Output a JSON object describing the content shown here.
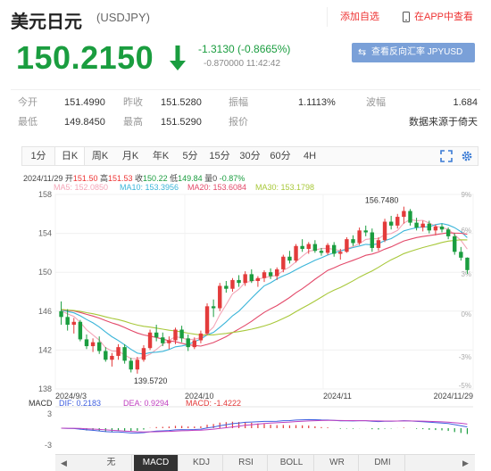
{
  "header": {
    "title": "美元日元",
    "code": "(USDJPY)",
    "add_watch": "添加自选",
    "app_link": "在APP中查看"
  },
  "quote": {
    "price": "150.2150",
    "change": "-1.3130 (-0.8665%)",
    "sub_change": "-0.870000",
    "time": "11:42:42",
    "reverse_button": "查看反向汇率 JPYUSD"
  },
  "stats": {
    "open_label": "今开",
    "open": "151.4990",
    "prev_label": "昨收",
    "prev": "151.5280",
    "amp_label": "振幅",
    "amp": "1.1113%",
    "wave_label": "波幅",
    "wave": "1.684",
    "low_label": "最低",
    "low": "149.8450",
    "high_label": "最高",
    "high": "151.5290",
    "quote_label": "报价",
    "source": "数据来源于倚天"
  },
  "tabs": [
    "1分",
    "日K",
    "周K",
    "月K",
    "年K",
    "5分",
    "15分",
    "30分",
    "60分",
    "4H"
  ],
  "active_tab": "日K",
  "icons": [
    "fullscreen-icon",
    "settings-icon"
  ],
  "chart_info": {
    "date": "2024/11/29",
    "open_label": "开",
    "open": "151.50",
    "high_label": "高",
    "high": "151.53",
    "close_label": "收",
    "close": "150.22",
    "low_label": "低",
    "low": "149.84",
    "change_label": "量",
    "change": "0",
    "pct": "-0.87%",
    "ma5": "MA5: 152.0850",
    "ma10": "MA10: 153.3956",
    "ma20": "MA20: 153.6084",
    "ma30": "MA30: 153.1798"
  },
  "colors": {
    "up": "#e33b3b",
    "down": "#1a9d3f",
    "ma5": "#f4a6b8",
    "ma10": "#3bb5d9",
    "ma20": "#e34a6a",
    "ma30": "#a8c83a",
    "macd_dif": "#4060e0",
    "macd_dea": "#c040c0",
    "accent_button": "#7aa0d8"
  },
  "macd_info": {
    "title": "MACD",
    "dif": "DIF: 0.2183",
    "dea": "DEA: 0.9294",
    "macd": "MACD: -1.4222",
    "y_top": "3",
    "y_bottom": "-3"
  },
  "bottom_tabs": [
    "无",
    "MACD",
    "KDJ",
    "RSI",
    "BOLL",
    "WR",
    "DMI"
  ],
  "active_bottom_tab": "MACD",
  "chart_data": {
    "type": "candlestick",
    "title": "",
    "x_labels": [
      "2024/9/3",
      "2024/10",
      "2024/11",
      "2024/11/29"
    ],
    "y_ticks": [
      "158",
      "154",
      "150",
      "146",
      "142",
      "138"
    ],
    "y_range": [
      138,
      158
    ],
    "pct_ticks": [
      "9%",
      "6%",
      "3%",
      "0%",
      "-3%",
      "-5%"
    ],
    "annotations": {
      "max": "156.7480",
      "min": "139.5720"
    },
    "candles": [
      [
        146.0,
        147.0,
        144.6,
        145.4
      ],
      [
        145.4,
        146.2,
        144.0,
        144.6
      ],
      [
        144.6,
        145.3,
        143.7,
        144.9
      ],
      [
        144.9,
        145.1,
        142.9,
        143.1
      ],
      [
        143.1,
        143.6,
        142.1,
        142.4
      ],
      [
        142.4,
        143.2,
        141.8,
        142.8
      ],
      [
        142.8,
        143.4,
        141.6,
        141.9
      ],
      [
        141.9,
        142.3,
        140.8,
        141.0
      ],
      [
        141.0,
        141.7,
        140.3,
        141.4
      ],
      [
        141.4,
        142.6,
        141.0,
        142.3
      ],
      [
        142.3,
        142.6,
        140.6,
        140.9
      ],
      [
        140.9,
        141.2,
        139.7,
        140.0
      ],
      [
        140.0,
        141.3,
        139.57,
        141.0
      ],
      [
        141.0,
        142.5,
        140.8,
        142.2
      ],
      [
        142.2,
        144.1,
        142.0,
        143.8
      ],
      [
        143.8,
        144.6,
        142.9,
        143.3
      ],
      [
        143.3,
        143.8,
        142.4,
        142.7
      ],
      [
        142.7,
        143.4,
        142.1,
        143.0
      ],
      [
        143.0,
        144.3,
        142.6,
        144.1
      ],
      [
        144.1,
        144.5,
        142.8,
        143.2
      ],
      [
        143.2,
        143.6,
        141.9,
        142.3
      ],
      [
        142.3,
        143.3,
        142.1,
        143.0
      ],
      [
        143.0,
        144.0,
        142.7,
        143.7
      ],
      [
        143.7,
        146.8,
        143.5,
        146.5
      ],
      [
        146.5,
        147.2,
        145.4,
        146.3
      ],
      [
        146.3,
        148.9,
        146.0,
        148.6
      ],
      [
        148.6,
        149.1,
        147.9,
        148.3
      ],
      [
        148.3,
        149.4,
        148.0,
        149.2
      ],
      [
        149.2,
        149.7,
        148.5,
        148.9
      ],
      [
        148.9,
        150.1,
        148.6,
        149.8
      ],
      [
        149.8,
        150.3,
        148.9,
        149.1
      ],
      [
        149.1,
        149.6,
        148.5,
        149.4
      ],
      [
        149.4,
        150.2,
        149.0,
        150.0
      ],
      [
        150.0,
        150.4,
        149.3,
        149.6
      ],
      [
        149.6,
        150.5,
        149.2,
        150.3
      ],
      [
        150.3,
        151.8,
        150.0,
        151.6
      ],
      [
        151.6,
        152.2,
        150.9,
        151.2
      ],
      [
        151.2,
        152.9,
        151.0,
        152.7
      ],
      [
        152.7,
        153.4,
        152.1,
        152.4
      ],
      [
        152.4,
        153.1,
        151.9,
        152.9
      ],
      [
        152.9,
        153.3,
        152.0,
        152.2
      ],
      [
        152.2,
        152.5,
        151.7,
        152.0
      ],
      [
        152.0,
        153.0,
        151.8,
        152.8
      ],
      [
        152.8,
        153.1,
        151.6,
        151.9
      ],
      [
        151.9,
        152.4,
        151.3,
        152.1
      ],
      [
        152.1,
        153.6,
        152.0,
        153.4
      ],
      [
        153.4,
        153.8,
        152.7,
        153.0
      ],
      [
        153.0,
        154.6,
        152.8,
        154.3
      ],
      [
        154.3,
        154.8,
        153.7,
        154.1
      ],
      [
        154.1,
        154.5,
        152.1,
        152.5
      ],
      [
        152.5,
        153.6,
        152.2,
        153.3
      ],
      [
        153.3,
        155.5,
        153.1,
        155.2
      ],
      [
        155.2,
        155.8,
        154.4,
        154.8
      ],
      [
        154.8,
        156.0,
        154.5,
        155.7
      ],
      [
        155.7,
        156.748,
        155.0,
        156.3
      ],
      [
        156.3,
        156.5,
        154.8,
        155.1
      ],
      [
        155.1,
        155.6,
        154.3,
        154.6
      ],
      [
        154.6,
        155.3,
        154.2,
        155.0
      ],
      [
        155.0,
        155.3,
        154.0,
        154.3
      ],
      [
        154.3,
        154.9,
        153.8,
        154.7
      ],
      [
        154.7,
        155.0,
        154.1,
        154.4
      ],
      [
        154.4,
        154.6,
        153.4,
        153.7
      ],
      [
        153.7,
        154.0,
        151.8,
        152.1
      ],
      [
        152.1,
        152.6,
        151.2,
        151.5
      ],
      [
        151.5,
        151.53,
        149.84,
        150.22
      ]
    ]
  }
}
